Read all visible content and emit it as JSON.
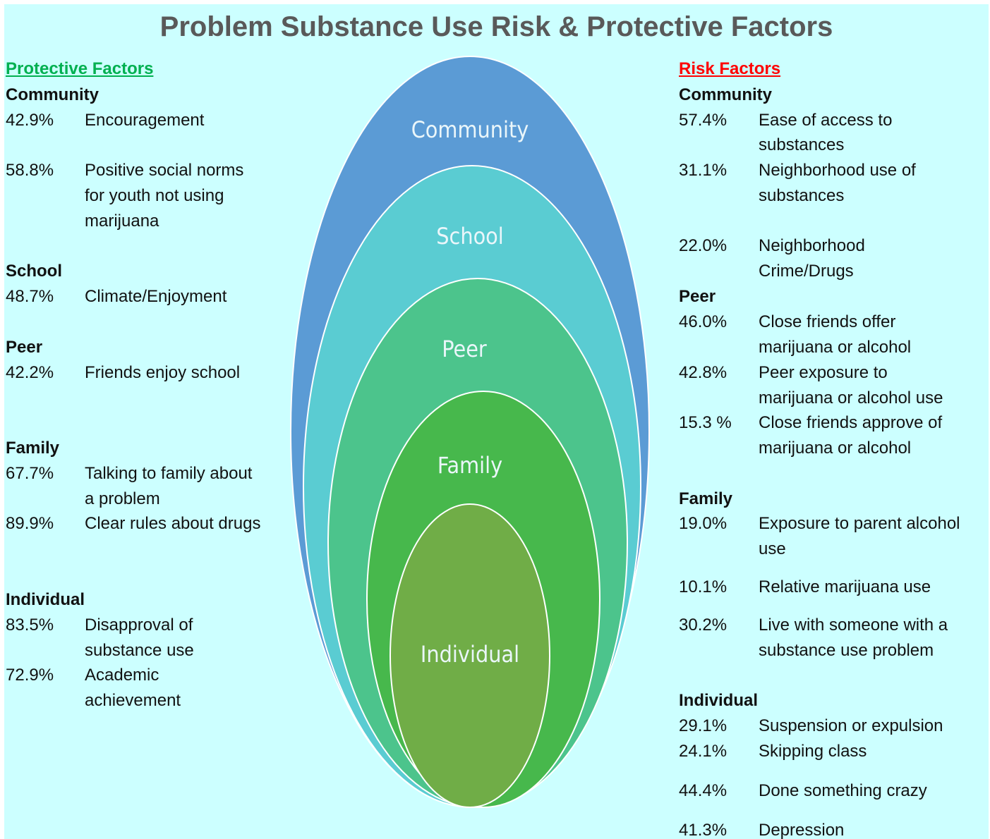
{
  "title": "Problem Substance Use Risk & Protective Factors",
  "protective": {
    "heading": "Protective Factors",
    "groups": [
      {
        "name": "Community",
        "items": [
          {
            "pct": "42.9%",
            "text": [
              "Encouragement"
            ]
          },
          {
            "pct": "58.8%",
            "text": [
              "Positive social norms",
              "for youth not using",
              "marijuana"
            ]
          }
        ]
      },
      {
        "name": "School",
        "items": [
          {
            "pct": "48.7%",
            "text": [
              "Climate/Enjoyment"
            ]
          }
        ]
      },
      {
        "name": "Peer",
        "items": [
          {
            "pct": "42.2%",
            "text": [
              "Friends enjoy school"
            ]
          }
        ]
      },
      {
        "name": "Family",
        "items": [
          {
            "pct": "67.7%",
            "text": [
              "Talking to family about",
              "a problem"
            ]
          },
          {
            "pct": "89.9%",
            "text": [
              "Clear rules about drugs"
            ]
          }
        ]
      },
      {
        "name": "Individual",
        "items": [
          {
            "pct": "83.5%",
            "text": [
              "Disapproval of",
              "substance use"
            ]
          },
          {
            "pct": "72.9%",
            "text": [
              "Academic",
              "achievement"
            ]
          }
        ]
      }
    ]
  },
  "risk": {
    "heading": "Risk Factors",
    "groups": [
      {
        "name": "Community",
        "items": [
          {
            "pct": "57.4%",
            "text": [
              "Ease of access to",
              "substances"
            ]
          },
          {
            "pct": "31.1%",
            "text": [
              "Neighborhood use of",
              "substances"
            ]
          },
          {
            "pct": "22.0%",
            "text": [
              "Neighborhood",
              "Crime/Drugs"
            ]
          }
        ]
      },
      {
        "name": "Peer",
        "items": [
          {
            "pct": "46.0%",
            "text": [
              "Close friends offer",
              "marijuana or alcohol"
            ]
          },
          {
            "pct": "42.8%",
            "text": [
              "Peer exposure to",
              "marijuana or alcohol use"
            ]
          },
          {
            "pct": "15.3 %",
            "text": [
              "Close friends approve of",
              "marijuana or alcohol"
            ]
          }
        ]
      },
      {
        "name": "Family",
        "items": [
          {
            "pct": "19.0%",
            "text": [
              "Exposure to parent alcohol",
              "use"
            ]
          },
          {
            "pct": "10.1%",
            "text": [
              "Relative marijuana use"
            ]
          },
          {
            "pct": "30.2%",
            "text": [
              "Live with someone with a",
              "substance use problem"
            ]
          }
        ]
      },
      {
        "name": "Individual",
        "items": [
          {
            "pct": "29.1%",
            "text": [
              "Suspension or expulsion"
            ]
          },
          {
            "pct": "24.1%",
            "text": [
              "Skipping class"
            ]
          },
          {
            "pct": "44.4%",
            "text": [
              "Done something crazy"
            ]
          },
          {
            "pct": "41.3%",
            "text": [
              "Depression"
            ]
          }
        ]
      }
    ]
  },
  "diagram": {
    "layers": [
      "Community",
      "School",
      "Peer",
      "Family",
      "Individual"
    ]
  }
}
